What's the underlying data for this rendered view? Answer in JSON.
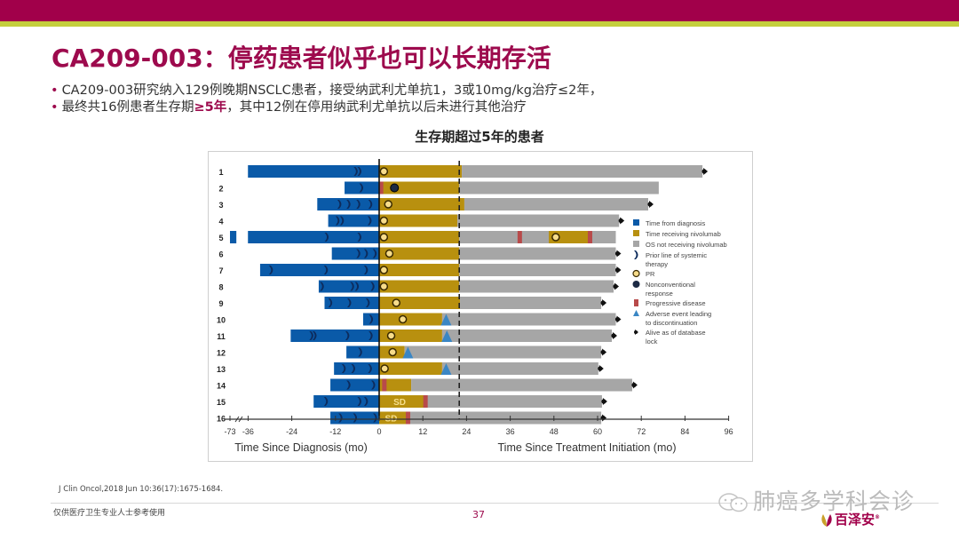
{
  "header": {
    "brand_color": "#a1004a",
    "stripe_color": "#c4cf3d"
  },
  "title": "CA209-003：停药患者似乎也可以长期存活",
  "bullets": [
    {
      "text": "CA209-003研究纳入129例晚期NSCLC患者，接受纳武利尤单抗1，3或10mg/kg治疗≤2年，"
    },
    {
      "text_before": "最终共16例患者生存期",
      "highlight": "≥5年",
      "text_after": "，其中12例在停用纳武利尤单抗以后未进行其他治疗"
    }
  ],
  "chart_title": "生存期超过5年的患者",
  "chart_data": {
    "type": "swimmer",
    "title": "生存期超过5年的患者",
    "xlabel_left": "Time Since Diagnosis (mo)",
    "xlabel_right": "Time Since Treatment Initiation (mo)",
    "x_ticks": [
      "-73",
      "-36",
      "-24",
      "-12",
      "0",
      "12",
      "24",
      "36",
      "48",
      "60",
      "72",
      "84",
      "96"
    ],
    "x_tick_values": [
      -73,
      -36,
      -24,
      -12,
      0,
      12,
      24,
      36,
      48,
      60,
      72,
      84,
      96
    ],
    "axis_break_between": [
      -73,
      -36
    ],
    "treatment_cutoff_line": 22,
    "xlim": [
      -73,
      96
    ],
    "colors": {
      "diagnosis": "#0a5aa8",
      "nivolumab": "#b8900f",
      "os": "#a6a6a6",
      "pr": "#f7dc8a",
      "nonconventional": "#1c2a44",
      "pd": "#b84a4a",
      "ae": "#3a86c4",
      "alive": "#111111",
      "therapy_mark": "#0d2b5c"
    },
    "patients": [
      {
        "id": "1",
        "dx_start": -36.3,
        "dx_extra": -73,
        "prior_lines": [
          -6.5,
          -5.5
        ],
        "nivo_end": 22.7,
        "os_end": 88.8,
        "alive": true,
        "pr": 1.3,
        "sd": false
      },
      {
        "id": "2",
        "dx_start": -9.5,
        "prior_lines": [
          -5
        ],
        "nivo_end": 22,
        "os_end": 76.8,
        "alive": false,
        "pd": [
          0.4
        ],
        "nonconventional": 4.2
      },
      {
        "id": "3",
        "dx_start": -17,
        "prior_lines": [
          -11,
          -8.5,
          -5.8,
          -2.5
        ],
        "nivo_end": 23.4,
        "os_end": 73.9,
        "alive": true,
        "pr": 2.5
      },
      {
        "id": "4",
        "dx_start": -14,
        "prior_lines": [
          -11.5,
          -10.3,
          -2.7
        ],
        "nivo_end": 21.5,
        "os_end": 65.9,
        "alive": true,
        "pr": 1.3
      },
      {
        "id": "5",
        "dx_start": -36.3,
        "dx_prefix": [
          -73,
          -60
        ],
        "prior_lines": [
          -14.5,
          -5.5
        ],
        "nivo_end": 22,
        "os_end": 65,
        "alive": false,
        "pr": 1.3,
        "pd": [
          38.5,
          57.8
        ],
        "retreat": [
          46.6,
          57.8
        ],
        "pr2": 48.5
      },
      {
        "id": "6",
        "dx_start": -13,
        "prior_lines": [
          -5.8,
          -3.7,
          -1.3
        ],
        "nivo_end": 22,
        "os_end": 65,
        "alive": true,
        "pr": 2.8
      },
      {
        "id": "7",
        "dx_start": -32.7,
        "prior_lines": [
          -29.8,
          -14.7,
          -3.7
        ],
        "nivo_end": 22,
        "os_end": 65,
        "alive": true,
        "pr": 1.3
      },
      {
        "id": "8",
        "dx_start": -16.6,
        "prior_lines": [
          -15.8,
          -7.5,
          -6.2,
          -1.9
        ],
        "nivo_end": 22,
        "os_end": 64.4,
        "alive": true,
        "pr": 1.3
      },
      {
        "id": "9",
        "dx_start": -15,
        "prior_lines": [
          -13.5,
          -8.3,
          -3.2
        ],
        "nivo_end": 22.2,
        "os_end": 61,
        "alive": true,
        "pr": 4.7
      },
      {
        "id": "10",
        "dx_start": -4.4,
        "prior_lines": [
          -2.3
        ],
        "nivo_end": 17.3,
        "os_end": 65,
        "alive": true,
        "pr": 6.5,
        "ae": 18.4
      },
      {
        "id": "11",
        "dx_start": -24.3,
        "prior_lines": [
          -18.7,
          -17.8,
          -8.8,
          -2.4
        ],
        "nivo_end": 17.3,
        "os_end": 63.9,
        "alive": true,
        "pr": 3.3,
        "ae": 18.6
      },
      {
        "id": "12",
        "dx_start": -9,
        "prior_lines": [
          -5.3
        ],
        "nivo_end": 7,
        "os_end": 61,
        "alive": true,
        "pr": 3.7,
        "ae": 7.9
      },
      {
        "id": "13",
        "dx_start": -12.4,
        "prior_lines": [
          -9.8,
          -7.2,
          -2.6
        ],
        "nivo_end": 17.3,
        "os_end": 60.2,
        "alive": true,
        "pr": 1.5,
        "ae": 18.4
      },
      {
        "id": "14",
        "dx_start": -13.4,
        "prior_lines": [
          -8.5,
          -1.7
        ],
        "nivo_end": 8.8,
        "os_end": 69.5,
        "alive": true,
        "pd": [
          1.3
        ]
      },
      {
        "id": "15",
        "dx_start": -18,
        "prior_lines": [
          -14.7,
          -5.5,
          -3.7
        ],
        "nivo_end": 13.2,
        "os_end": 61.2,
        "alive": true,
        "sd": true,
        "pd": [
          12.6
        ]
      },
      {
        "id": "16",
        "dx_start": -13.4,
        "prior_lines": [
          -10.7,
          -6.7,
          -1.2
        ],
        "nivo_end": 8.5,
        "os_end": 61,
        "alive": true,
        "sd": true,
        "pd": [
          7.8
        ]
      }
    ],
    "sd_label": "SD",
    "legend": [
      {
        "key": "diagnosis",
        "label": "Time from diagnosis",
        "shape": "square"
      },
      {
        "key": "nivolumab",
        "label": "Time receiving nivolumab",
        "shape": "square"
      },
      {
        "key": "os",
        "label": "OS not receiving nivolumab",
        "shape": "square"
      },
      {
        "key": "therapy_mark",
        "label": "Prior line of systemic therapy",
        "shape": "chevron"
      },
      {
        "key": "pr",
        "label": "PR",
        "shape": "circle-open"
      },
      {
        "key": "nonconventional",
        "label": "Nonconventional response",
        "shape": "circle"
      },
      {
        "key": "pd",
        "label": "Progressive disease",
        "shape": "rect"
      },
      {
        "key": "ae",
        "label": "Adverse event leading to discontinuation",
        "shape": "triangle"
      },
      {
        "key": "alive",
        "label": "Alive as of database lock",
        "shape": "arrow"
      }
    ],
    "legend_position": "right"
  },
  "citation": "J Clin Oncol,2018 Jun 10:36(17):1675-1684.",
  "footer": {
    "note": "仅供医疗卫生专业人士参考使用",
    "page_number": "37"
  },
  "watermark": {
    "text": "肺癌多学科会诊",
    "logo_text": "百泽安",
    "logo_mark": "®"
  }
}
